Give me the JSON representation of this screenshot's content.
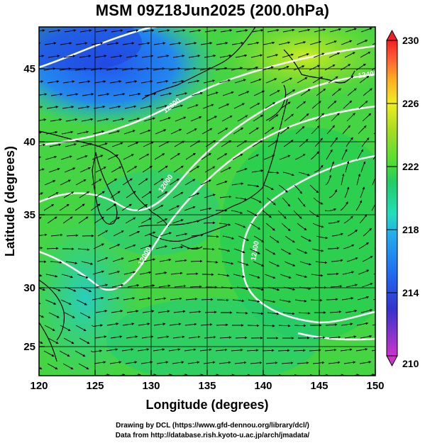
{
  "title": "MSM 09Z18Jun2025 (200.0hPa)",
  "axes": {
    "xlabel": "Longitude (degrees)",
    "ylabel": "Latitude  (degrees)",
    "x_ticks": [
      "120",
      "125",
      "130",
      "135",
      "140",
      "145",
      "150"
    ],
    "y_ticks": [
      "25",
      "30",
      "35",
      "40",
      "45"
    ],
    "xlim": [
      120,
      150
    ],
    "ylim": [
      22.4,
      47.6
    ]
  },
  "colorbar": {
    "min": 210,
    "max": 230,
    "labels": [
      "230",
      "226",
      "222",
      "218",
      "214",
      "210"
    ],
    "colors": [
      "#cc33cc",
      "#3333cc",
      "#2266ee",
      "#22aaee",
      "#22ddbb",
      "#22cc66",
      "#55dd33",
      "#aadd22",
      "#eeee22",
      "#ffaa22",
      "#ff5533",
      "#ee2222"
    ]
  },
  "contours": {
    "color": "#ffffff",
    "labels": [
      "12000",
      "12000",
      "12000",
      "12400",
      "12400"
    ]
  },
  "credits": {
    "line1": "Drawing by DCL (https://www.gfd-dennou.org/library/dcl/)",
    "line2": "Data from http://database.rish.kyoto-u.ac.jp/arch/jmadata/"
  }
}
